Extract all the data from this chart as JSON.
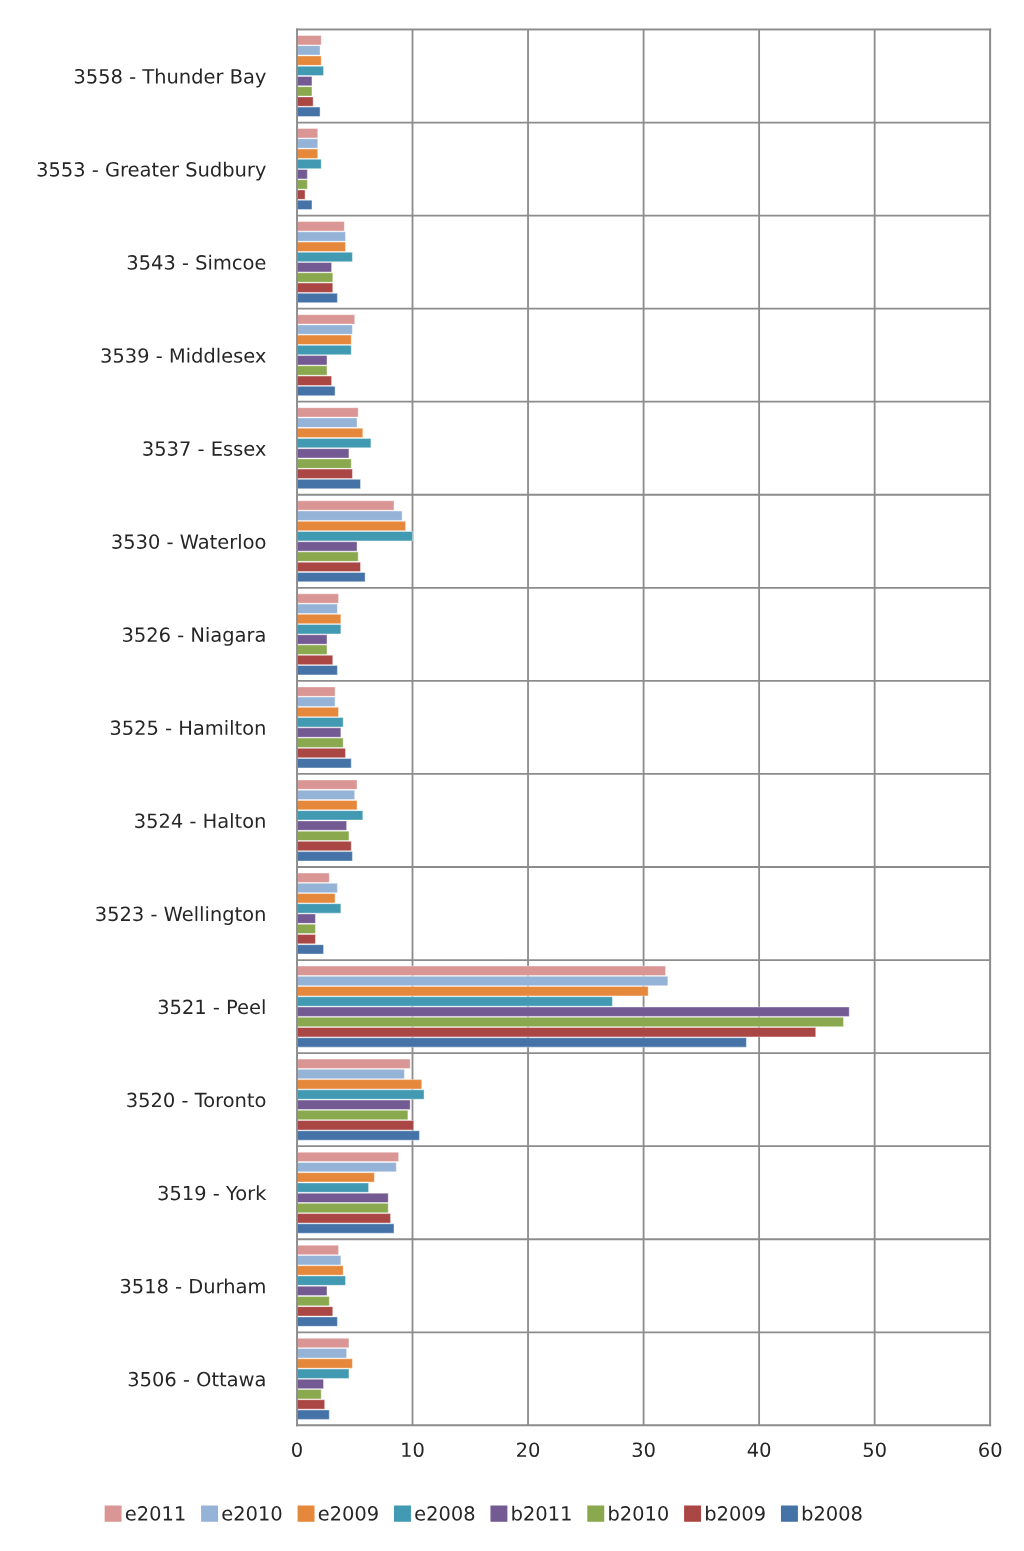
{
  "chart_data": {
    "type": "bar",
    "orientation": "horizontal",
    "categories": [
      "3558 - Thunder Bay",
      "3553 - Greater Sudbury",
      "3543 - Simcoe",
      "3539 - Middlesex",
      "3537 - Essex",
      "3530 - Waterloo",
      "3526 - Niagara",
      "3525 - Hamilton",
      "3524 - Halton",
      "3523 - Wellington",
      "3521 - Peel",
      "3520 - Toronto",
      "3519 - York",
      "3518 - Durham",
      "3506 - Ottawa"
    ],
    "series": [
      {
        "name": "e2011",
        "color": "#d99694",
        "values": [
          2.1,
          1.8,
          4.1,
          5.0,
          5.3,
          8.4,
          3.6,
          3.3,
          5.2,
          2.8,
          31.9,
          9.8,
          8.8,
          3.6,
          4.5
        ]
      },
      {
        "name": "e2010",
        "color": "#95b3d7",
        "values": [
          2.0,
          1.8,
          4.2,
          4.8,
          5.2,
          9.1,
          3.5,
          3.3,
          5.0,
          3.5,
          32.1,
          9.3,
          8.6,
          3.8,
          4.3
        ]
      },
      {
        "name": "e2009",
        "color": "#e6883b",
        "values": [
          2.1,
          1.8,
          4.2,
          4.7,
          5.7,
          9.4,
          3.8,
          3.6,
          5.2,
          3.3,
          30.4,
          10.8,
          6.7,
          4.0,
          4.8
        ]
      },
      {
        "name": "e2008",
        "color": "#4299b2",
        "values": [
          2.3,
          2.1,
          4.8,
          4.7,
          6.4,
          10.0,
          3.8,
          4.0,
          5.7,
          3.8,
          27.3,
          11.0,
          6.2,
          4.2,
          4.5
        ]
      },
      {
        "name": "b2011",
        "color": "#735a93",
        "values": [
          1.3,
          0.9,
          3.0,
          2.6,
          4.5,
          5.2,
          2.6,
          3.8,
          4.3,
          1.6,
          47.8,
          9.8,
          7.9,
          2.6,
          2.3
        ]
      },
      {
        "name": "b2010",
        "color": "#8aa84e",
        "values": [
          1.3,
          0.9,
          3.1,
          2.6,
          4.7,
          5.3,
          2.6,
          4.0,
          4.5,
          1.6,
          47.3,
          9.6,
          7.9,
          2.8,
          2.1
        ]
      },
      {
        "name": "b2009",
        "color": "#aa4644",
        "values": [
          1.4,
          0.7,
          3.1,
          3.0,
          4.8,
          5.5,
          3.1,
          4.2,
          4.7,
          1.6,
          44.9,
          10.1,
          8.1,
          3.1,
          2.4
        ]
      },
      {
        "name": "b2008",
        "color": "#4573a7",
        "values": [
          2.0,
          1.3,
          3.5,
          3.3,
          5.5,
          5.9,
          3.5,
          4.7,
          4.8,
          2.3,
          38.9,
          10.6,
          8.4,
          3.5,
          2.8
        ]
      }
    ],
    "xlim": [
      0,
      60
    ],
    "xticks": [
      0,
      10,
      20,
      30,
      40,
      50,
      60
    ],
    "grid": true,
    "legend": "bottom"
  }
}
